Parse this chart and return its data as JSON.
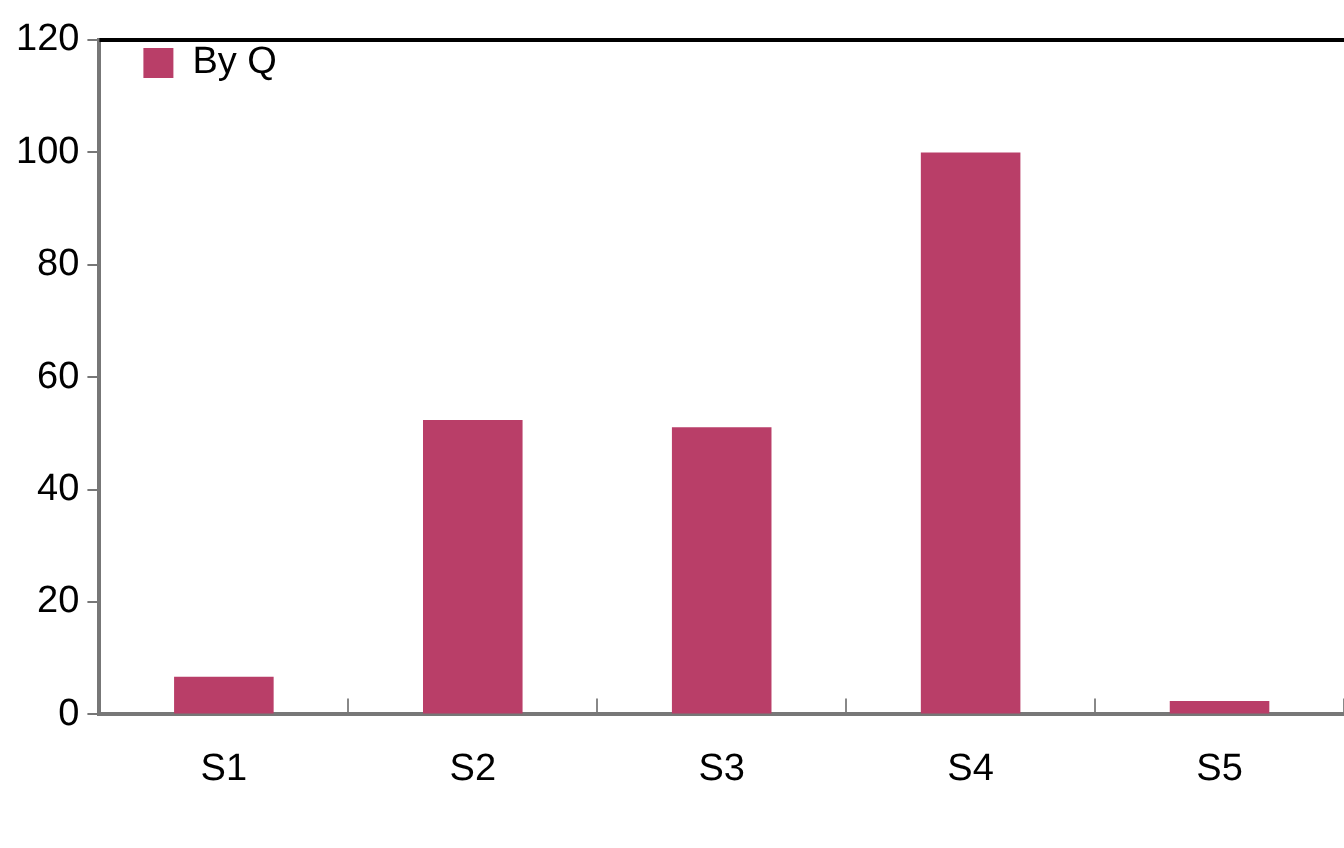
{
  "chart_data": {
    "type": "bar",
    "categories": [
      "S1",
      "S2",
      "S3",
      "S4",
      "S5"
    ],
    "series": [
      {
        "name": "By Q",
        "color": "#b93e68",
        "values": [
          6.7,
          52.4,
          51.1,
          100,
          2.4
        ]
      }
    ],
    "ylim": [
      0,
      120
    ],
    "yticks": [
      0,
      20,
      40,
      60,
      80,
      100,
      120
    ],
    "grid": false,
    "legend": "top left"
  }
}
